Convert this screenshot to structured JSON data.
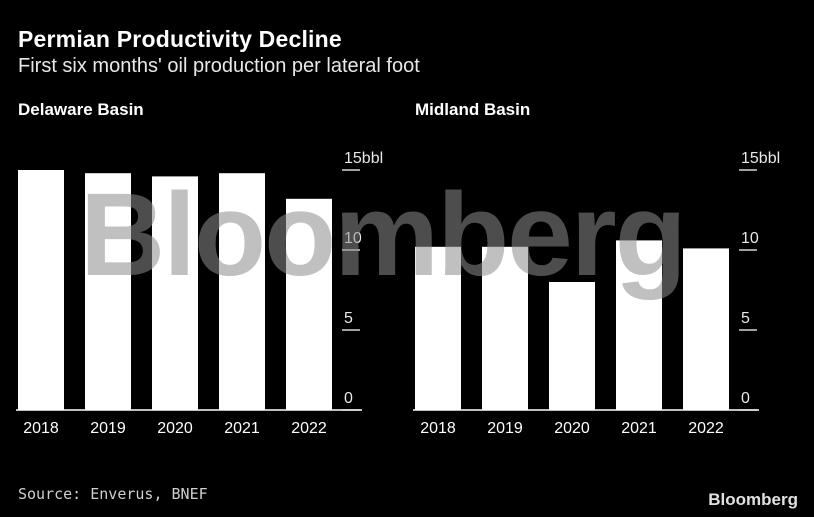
{
  "header": {
    "title": "Permian Productivity Decline",
    "subtitle": "First six months' oil production per lateral foot"
  },
  "footer": {
    "source": "Source: Enverus, BNEF",
    "brand": "Bloomberg"
  },
  "watermark": "Bloomberg",
  "colors": {
    "background": "#000000",
    "bar": "#ffffff",
    "axis": "#ffffff"
  },
  "chart_data": [
    {
      "type": "bar",
      "title": "Delaware Basin",
      "categories": [
        "2018",
        "2019",
        "2020",
        "2021",
        "2022"
      ],
      "values": [
        15.0,
        14.8,
        14.6,
        14.8,
        13.2
      ],
      "ylim": [
        0,
        15
      ],
      "yticks": [
        0,
        5,
        10,
        15
      ],
      "ytick_labels": [
        "0",
        "5",
        "10",
        "15bbl"
      ],
      "xlabel": "",
      "ylabel": "",
      "grid": false
    },
    {
      "type": "bar",
      "title": "Midland Basin",
      "categories": [
        "2018",
        "2019",
        "2020",
        "2021",
        "2022"
      ],
      "values": [
        10.2,
        10.2,
        8.0,
        10.6,
        10.1
      ],
      "ylim": [
        0,
        15
      ],
      "yticks": [
        0,
        5,
        10,
        15
      ],
      "ytick_labels": [
        "0",
        "5",
        "10",
        "15bbl"
      ],
      "xlabel": "",
      "ylabel": "",
      "grid": false
    }
  ]
}
